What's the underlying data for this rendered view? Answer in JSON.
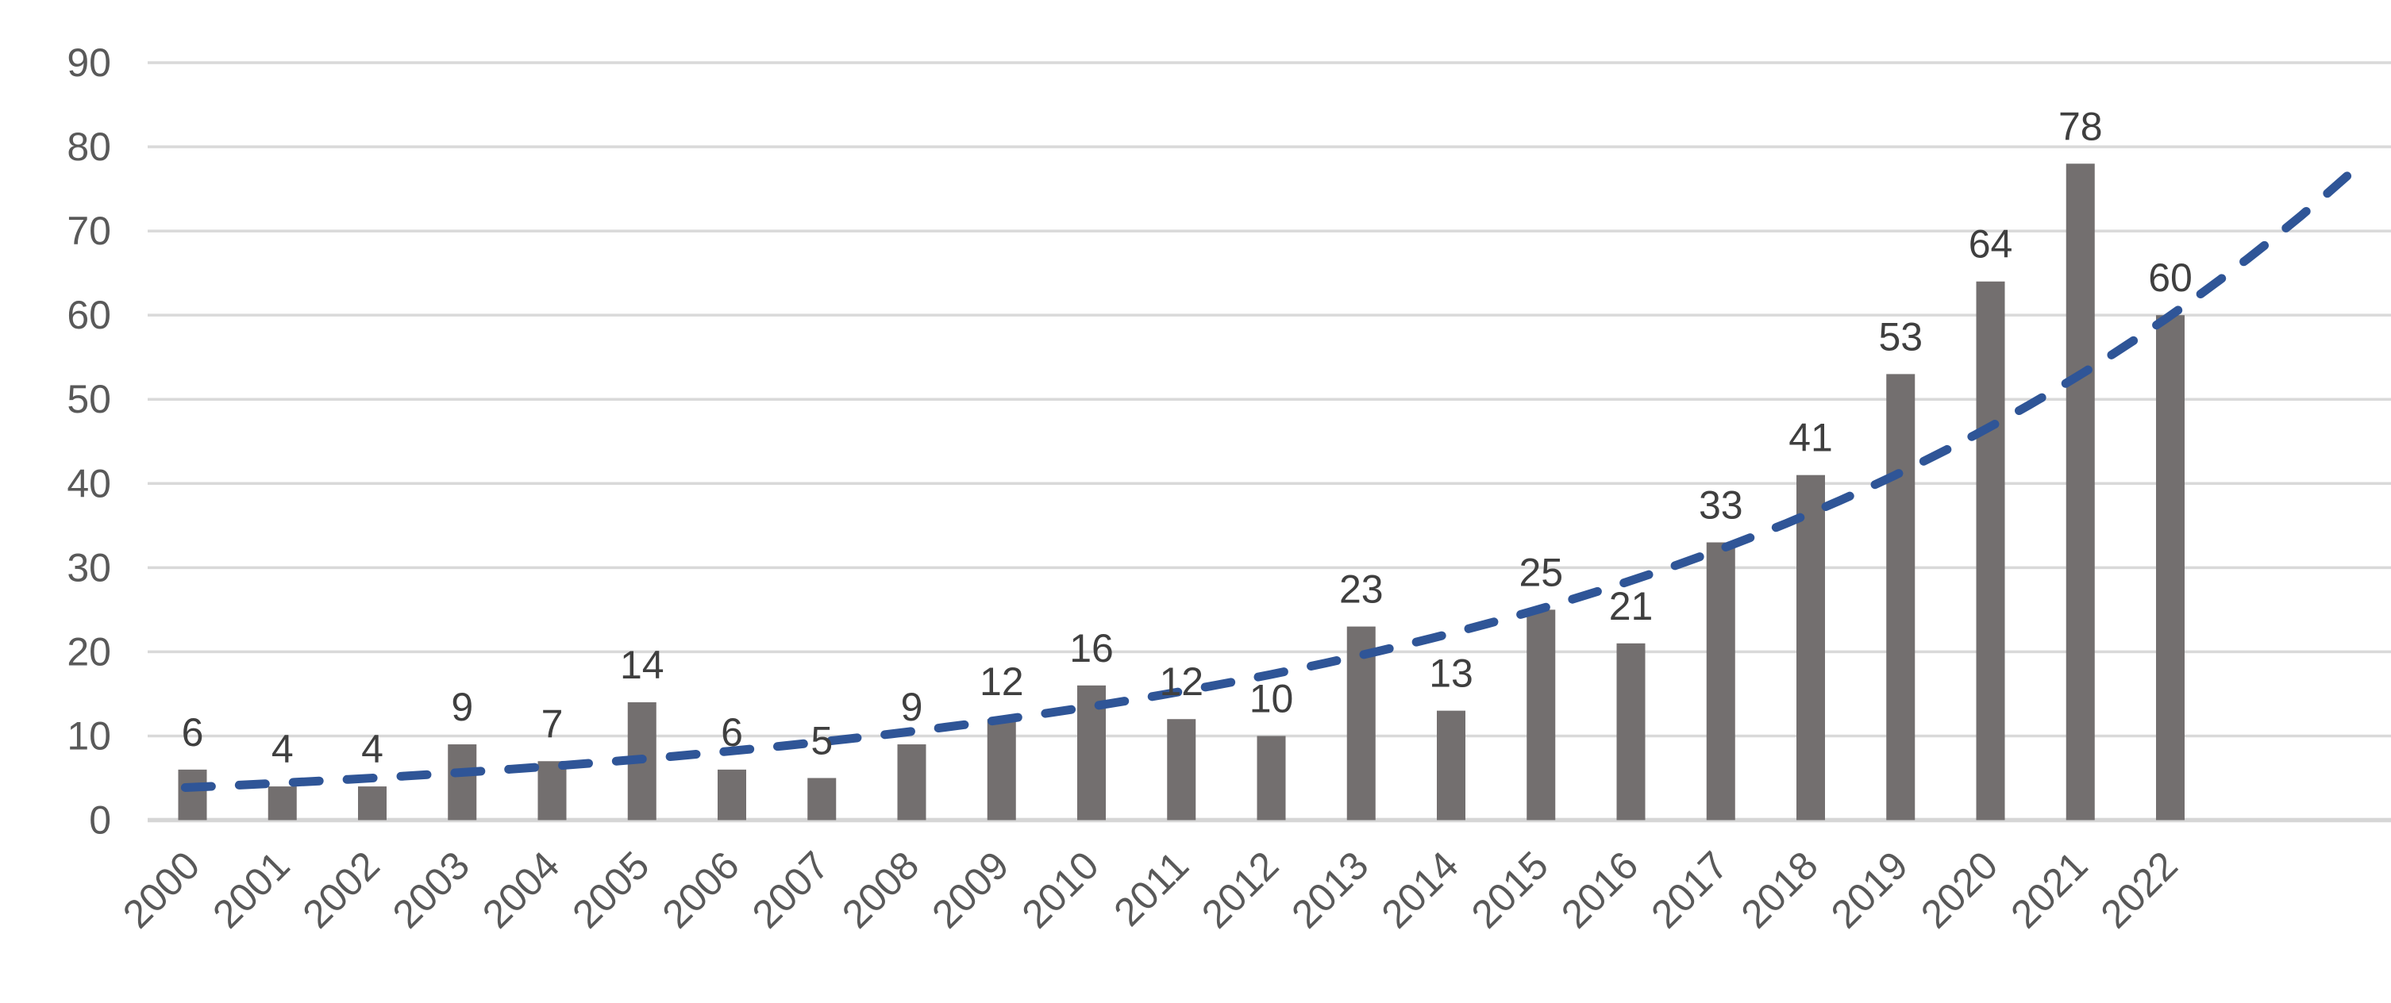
{
  "chart_data": {
    "type": "bar",
    "title": "",
    "xlabel": "",
    "ylabel": "",
    "categories": [
      "2000",
      "2001",
      "2002",
      "2003",
      "2004",
      "2005",
      "2006",
      "2007",
      "2008",
      "2009",
      "2010",
      "2011",
      "2012",
      "2013",
      "2014",
      "2015",
      "2016",
      "2017",
      "2018",
      "2019",
      "2020",
      "2021",
      "2022"
    ],
    "values": [
      6,
      4,
      4,
      9,
      7,
      14,
      6,
      5,
      9,
      12,
      16,
      12,
      10,
      23,
      13,
      25,
      21,
      33,
      41,
      53,
      64,
      78,
      60
    ],
    "data_labels": [
      6,
      4,
      4,
      9,
      7,
      14,
      6,
      5,
      9,
      12,
      16,
      12,
      10,
      23,
      13,
      25,
      21,
      33,
      41,
      53,
      64,
      78,
      60
    ],
    "ylim": [
      0,
      90
    ],
    "yticks": [
      0,
      10,
      20,
      30,
      40,
      50,
      60,
      70,
      80,
      90
    ],
    "grid": true,
    "legend": "none",
    "x_tick_rotation_deg": 45,
    "trendline": {
      "type": "exponential",
      "style": "dashed",
      "start_value": 3.9,
      "growth_rate": 0.1242,
      "i_start": -0.08,
      "i_end": 24.06
    }
  },
  "colors": {
    "background": "#FFFFFF",
    "bar": "#736F6F",
    "gridline": "#D9D9D9",
    "axis_line": "#D6D6D6",
    "value_label": "#3F3F3F",
    "axis_label": "#595959",
    "trendline": "#2F5597"
  }
}
